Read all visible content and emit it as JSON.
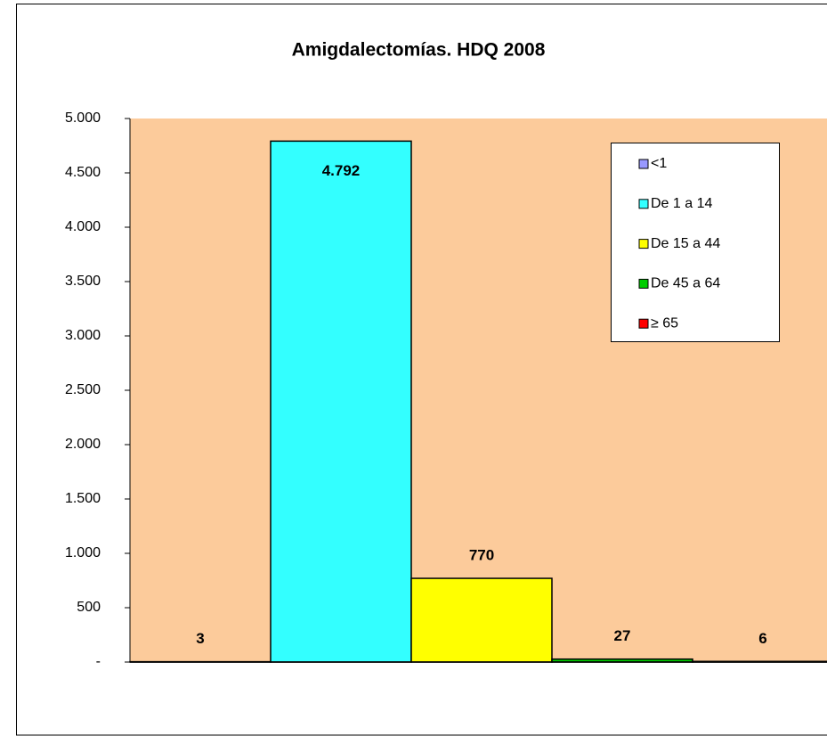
{
  "chart_data": {
    "type": "bar",
    "title": "Amigdalectomías. HDQ  2008",
    "series": [
      {
        "name": "<1",
        "color": "#9999FF",
        "values": [
          3
        ]
      },
      {
        "name": "De 1 a 14",
        "color": "#33FFFF",
        "values": [
          4792
        ],
        "value_labels": [
          "4.792"
        ]
      },
      {
        "name": "De 15 a 44",
        "color": "#FFFF00",
        "values": [
          770
        ]
      },
      {
        "name": "De 45 a 64",
        "color": "#00CC00",
        "values": [
          27
        ]
      },
      {
        "name": "≥ 65",
        "color": "#FF0000",
        "values": [
          6
        ]
      }
    ],
    "ylim": [
      0,
      5000
    ],
    "yticks": [
      {
        "value": 0,
        "label": "-"
      },
      500,
      {
        "value": 1000,
        "label": "1.000"
      },
      {
        "value": 1500,
        "label": "1.500"
      },
      {
        "value": 2000,
        "label": "2.000"
      },
      {
        "value": 2500,
        "label": "2.500"
      },
      {
        "value": 3000,
        "label": "3.000"
      },
      {
        "value": 3500,
        "label": "3.500"
      },
      {
        "value": 4000,
        "label": "4.000"
      },
      {
        "value": 4500,
        "label": "4.500"
      },
      {
        "value": 5000,
        "label": "5.000"
      }
    ],
    "legend": "upper right"
  }
}
